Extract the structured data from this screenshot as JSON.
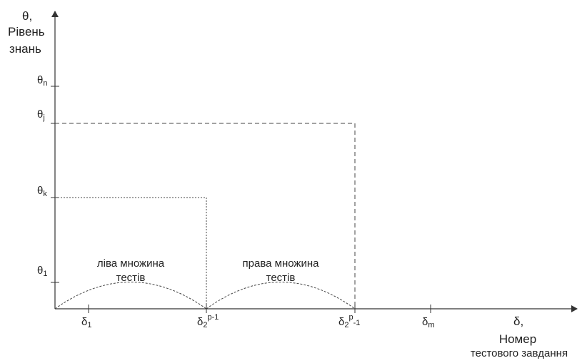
{
  "y_axis": {
    "title_lines": [
      "θ,",
      "Рівень",
      "знань"
    ],
    "ticks": [
      {
        "symbol": "θ",
        "sub": "n"
      },
      {
        "symbol": "θ",
        "sub": "j"
      },
      {
        "symbol": "θ",
        "sub": "k"
      },
      {
        "symbol": "θ",
        "sub": "1"
      }
    ]
  },
  "x_axis": {
    "title_lines": [
      "δ,",
      "Номер",
      "тестового завдання"
    ],
    "ticks": [
      {
        "symbol": "δ",
        "sub": "1",
        "sup": ""
      },
      {
        "symbol": "δ",
        "sub": "2",
        "sup": "p-1"
      },
      {
        "symbol": "δ",
        "sub": "2",
        "sup": "p",
        "tail": "-1"
      },
      {
        "symbol": "δ",
        "sub": "m",
        "sup": ""
      }
    ]
  },
  "regions": {
    "left_set": [
      "ліва множина",
      "тестів"
    ],
    "right_set": [
      "права множина",
      "тестів"
    ]
  },
  "colors": {
    "axis": "#333333",
    "text": "#222222",
    "dashed": "#444444"
  }
}
